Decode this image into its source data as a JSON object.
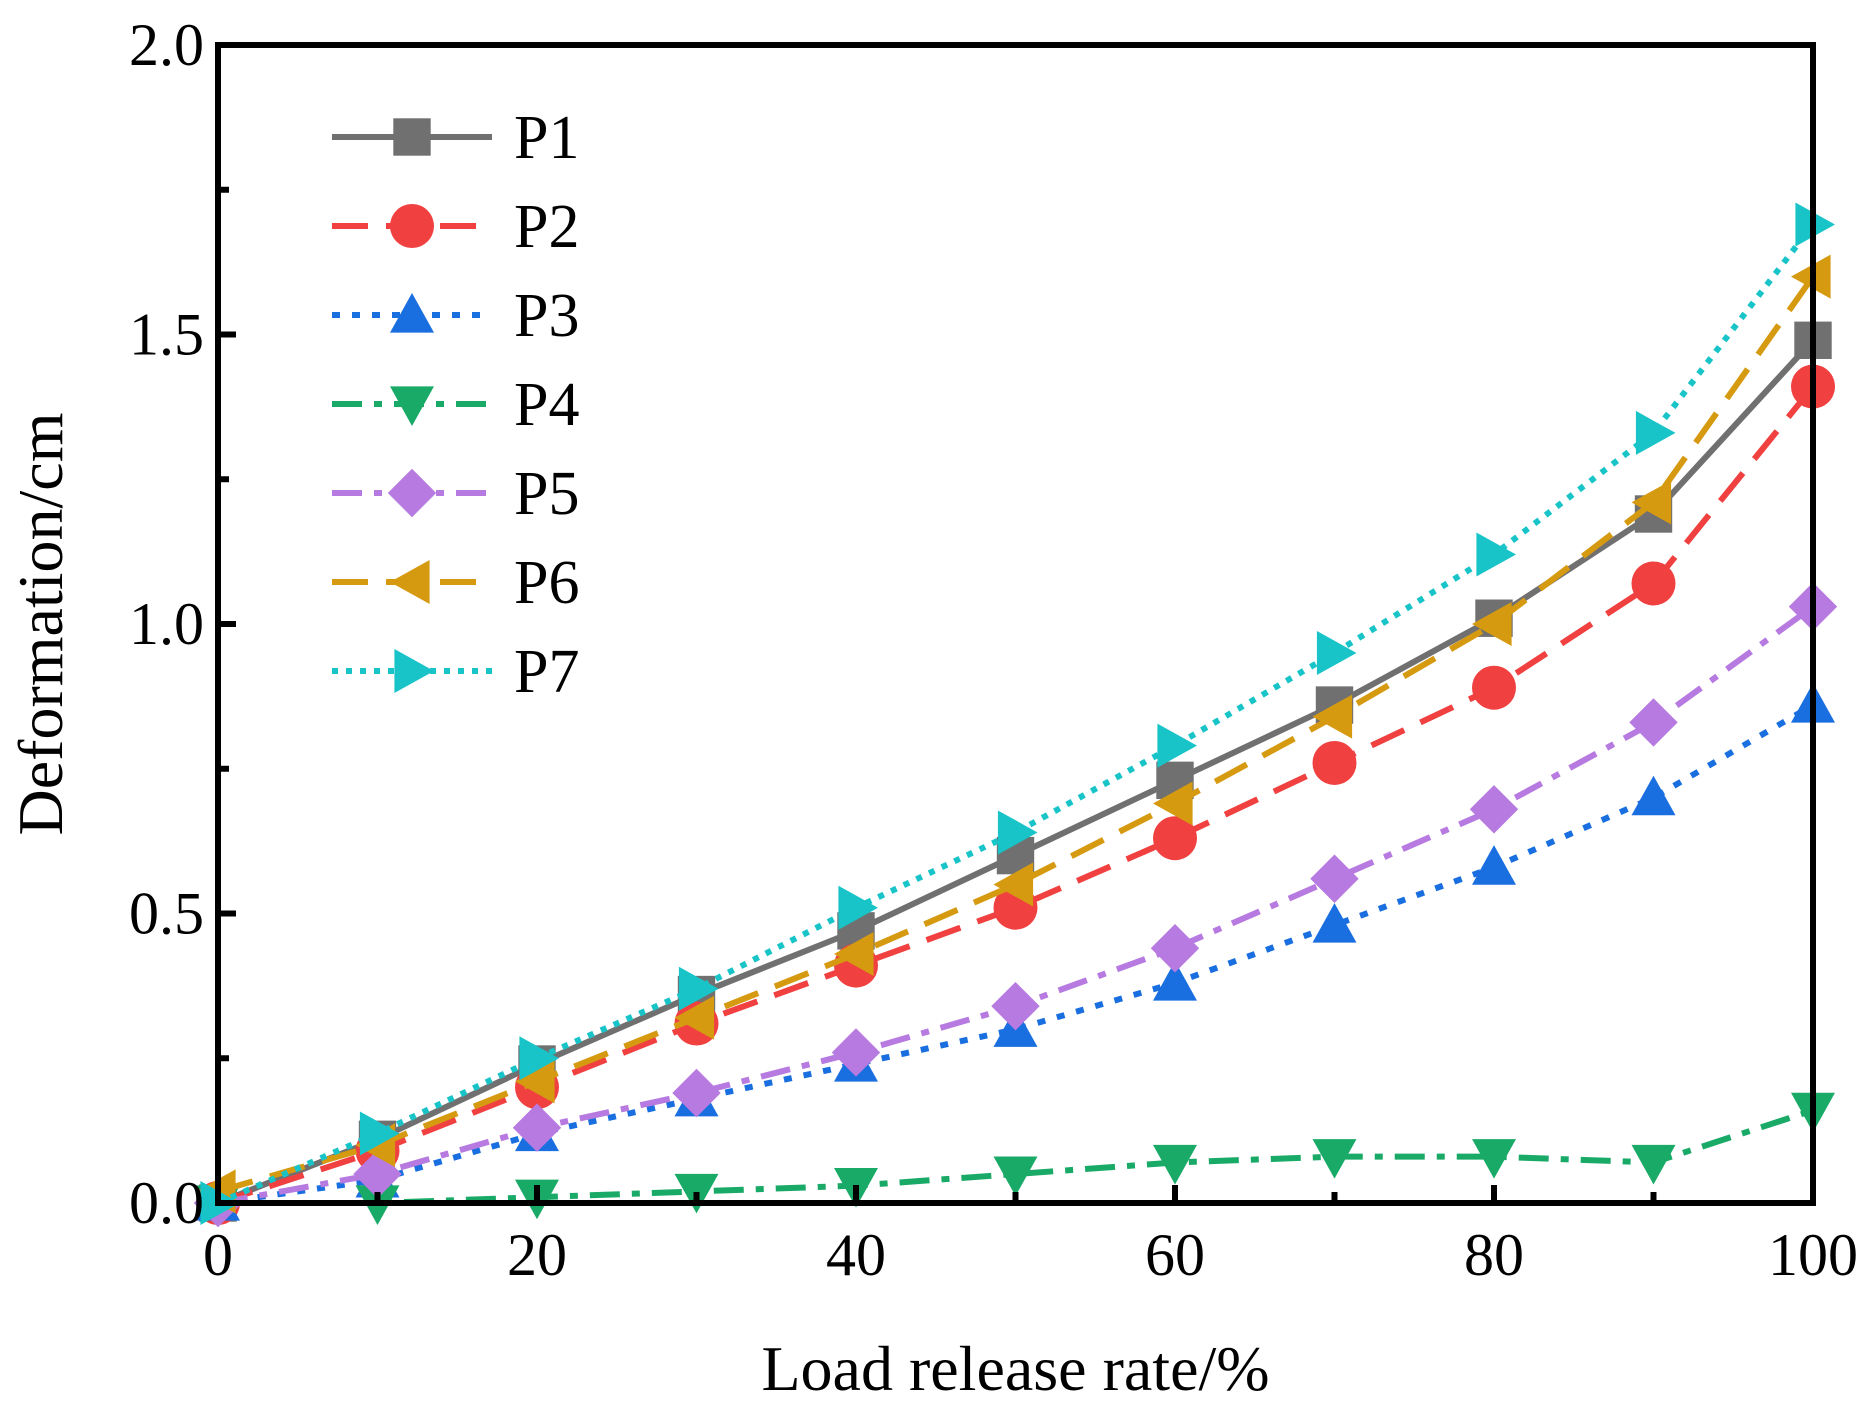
{
  "chart_data": {
    "type": "line",
    "title": "",
    "xlabel": "Load release rate/%",
    "ylabel": "Deformation/cm",
    "xlim": [
      0,
      100
    ],
    "ylim": [
      0,
      2.0
    ],
    "x_ticks": [
      "0",
      "20",
      "40",
      "60",
      "80",
      "100"
    ],
    "y_ticks": [
      "0.0",
      "0.5",
      "1.0",
      "1.5",
      "2.0"
    ],
    "grid": false,
    "legend_position": "top-left",
    "x": [
      0,
      10,
      20,
      30,
      40,
      50,
      60,
      70,
      80,
      90,
      100
    ],
    "series": [
      {
        "name": "P1",
        "color": "#707070",
        "marker": "square",
        "line": "solid",
        "values": [
          0.0,
          0.11,
          0.24,
          0.36,
          0.47,
          0.6,
          0.73,
          0.86,
          1.01,
          1.19,
          1.49
        ]
      },
      {
        "name": "P2",
        "color": "#f04040",
        "marker": "circle",
        "line": "dash",
        "values": [
          0.0,
          0.09,
          0.2,
          0.31,
          0.41,
          0.51,
          0.63,
          0.76,
          0.89,
          1.07,
          1.41
        ]
      },
      {
        "name": "P3",
        "color": "#1a6fe0",
        "marker": "triangle-up",
        "line": "dot",
        "values": [
          0.0,
          0.04,
          0.12,
          0.18,
          0.24,
          0.3,
          0.38,
          0.48,
          0.58,
          0.7,
          0.86
        ]
      },
      {
        "name": "P4",
        "color": "#1aaa68",
        "marker": "triangle-down",
        "line": "dashdot",
        "values": [
          0.0,
          0.0,
          0.01,
          0.02,
          0.03,
          0.05,
          0.07,
          0.08,
          0.08,
          0.07,
          0.16
        ]
      },
      {
        "name": "P5",
        "color": "#b77ae0",
        "marker": "diamond",
        "line": "dashdot",
        "values": [
          0.0,
          0.05,
          0.13,
          0.19,
          0.26,
          0.34,
          0.44,
          0.56,
          0.68,
          0.83,
          1.03
        ]
      },
      {
        "name": "P6",
        "color": "#d69a10",
        "marker": "triangle-left",
        "line": "dash",
        "values": [
          0.02,
          0.1,
          0.21,
          0.32,
          0.43,
          0.55,
          0.69,
          0.84,
          1.0,
          1.21,
          1.6
        ]
      },
      {
        "name": "P7",
        "color": "#18c4c8",
        "marker": "triangle-right",
        "line": "shortdot",
        "values": [
          0.0,
          0.12,
          0.25,
          0.37,
          0.51,
          0.64,
          0.79,
          0.95,
          1.12,
          1.33,
          1.69
        ]
      }
    ]
  }
}
